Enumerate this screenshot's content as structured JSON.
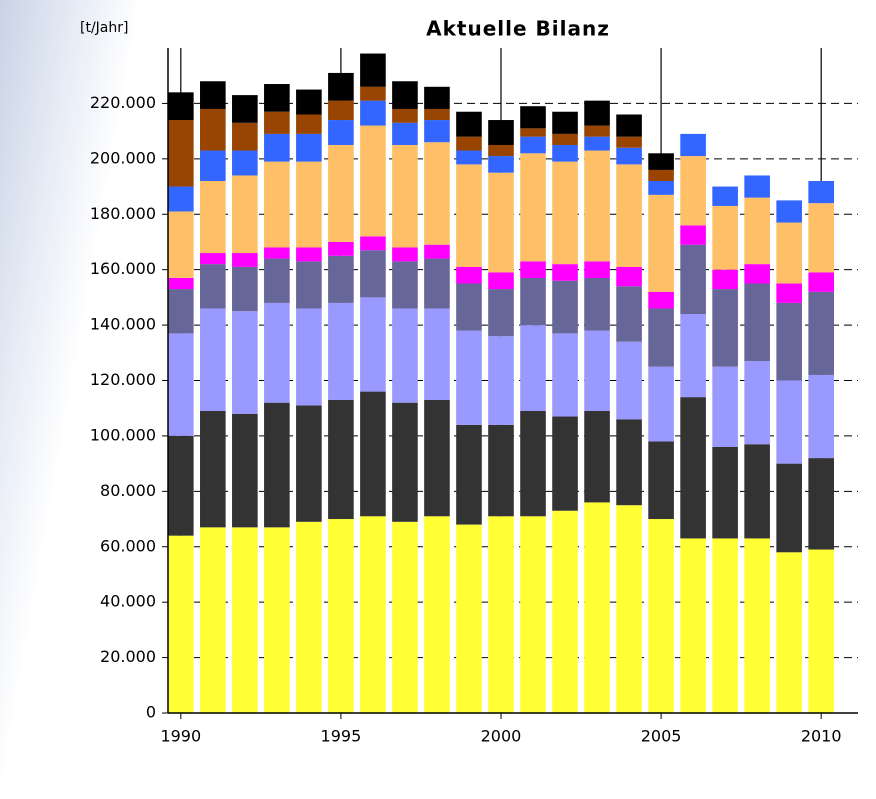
{
  "chart_data": {
    "type": "stacked_bar",
    "title": "Aktuelle Bilanz",
    "y_label": "[t/Jahr]",
    "x": [
      1990,
      1991,
      1992,
      1993,
      1994,
      1995,
      1996,
      1997,
      1998,
      1999,
      2000,
      2001,
      2002,
      2003,
      2004,
      2005,
      2006,
      2007,
      2008,
      2009,
      2010
    ],
    "xlim": [
      1989.6,
      2011.15
    ],
    "xticks": [
      1990,
      1995,
      2000,
      2005,
      2010
    ],
    "ylim": [
      0,
      240000
    ],
    "yticks": [
      0,
      {
        "value": 20000,
        "label": "20.000"
      },
      {
        "value": 40000,
        "label": "40.000"
      },
      {
        "value": 60000,
        "label": "60.000"
      },
      {
        "value": 80000,
        "label": "80.000"
      },
      {
        "value": 100000,
        "label": "100.000"
      },
      {
        "value": 120000,
        "label": "120.000"
      },
      {
        "value": 140000,
        "label": "140.000"
      },
      {
        "value": 160000,
        "label": "160.000"
      },
      {
        "value": 180000,
        "label": "180.000"
      },
      {
        "value": 200000,
        "label": "200.000"
      },
      {
        "value": 220000,
        "label": "220.000"
      }
    ],
    "grid": true,
    "series": [
      {
        "color": "#ffff33",
        "values": [
          64000,
          67000,
          67000,
          67000,
          69000,
          70000,
          71000,
          69000,
          71000,
          68000,
          71000,
          71000,
          73000,
          76000,
          75000,
          70000,
          63000,
          63000,
          63000,
          58000,
          59000
        ]
      },
      {
        "color": "#333333",
        "values": [
          36000,
          42000,
          41000,
          45000,
          42000,
          43000,
          45000,
          43000,
          42000,
          36000,
          33000,
          38000,
          34000,
          33000,
          31000,
          28000,
          51000,
          33000,
          34000,
          32000,
          33000
        ]
      },
      {
        "color": "#9999ff",
        "values": [
          37000,
          37000,
          37000,
          36000,
          35000,
          35000,
          34000,
          34000,
          33000,
          34000,
          32000,
          31000,
          30000,
          29000,
          28000,
          27000,
          30000,
          29000,
          30000,
          30000,
          30000
        ]
      },
      {
        "color": "#666699",
        "values": [
          16000,
          16000,
          16000,
          16000,
          17000,
          17000,
          17000,
          17000,
          18000,
          17000,
          17000,
          17000,
          19000,
          19000,
          20000,
          21000,
          25000,
          28000,
          28000,
          28000,
          30000
        ]
      },
      {
        "color": "#ff00ff",
        "values": [
          4000,
          4000,
          5000,
          4000,
          5000,
          5000,
          5000,
          5000,
          5000,
          6000,
          6000,
          6000,
          6000,
          6000,
          7000,
          6000,
          7000,
          7000,
          7000,
          7000,
          7000
        ]
      },
      {
        "color": "#ffbf66",
        "values": [
          24000,
          26000,
          28000,
          31000,
          31000,
          35000,
          40000,
          37000,
          37000,
          37000,
          36000,
          39000,
          37000,
          40000,
          37000,
          35000,
          25000,
          23000,
          24000,
          22000,
          25000
        ]
      },
      {
        "color": "#3366ff",
        "values": [
          9000,
          11000,
          9000,
          10000,
          10000,
          9000,
          9000,
          8000,
          8000,
          5000,
          6000,
          6000,
          6000,
          5000,
          6000,
          5000,
          8000,
          7000,
          8000,
          8000,
          8000
        ]
      },
      {
        "color": "#994400",
        "values": [
          24000,
          15000,
          10000,
          8000,
          7000,
          7000,
          5000,
          5000,
          4000,
          5000,
          4000,
          3000,
          4000,
          4000,
          4000,
          4000,
          0,
          0,
          0,
          0,
          0
        ]
      },
      {
        "color": "#000000",
        "values": [
          10000,
          10000,
          10000,
          10000,
          9000,
          10000,
          12000,
          10000,
          8000,
          9000,
          9000,
          8000,
          8000,
          9000,
          8000,
          6000,
          0,
          0,
          0,
          0,
          0
        ]
      }
    ]
  }
}
